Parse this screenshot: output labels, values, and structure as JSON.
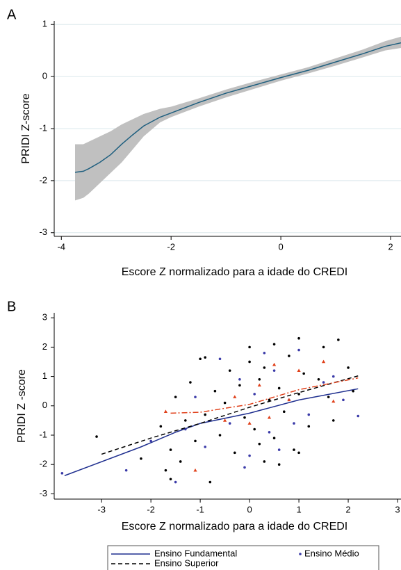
{
  "chart_data": [
    {
      "type": "line",
      "panel_label": "A",
      "xlabel": "Escore Z normalizado para a idade do CREDI",
      "ylabel": "PRIDI Z-score",
      "xlim": [
        -4.13,
        2.19
      ],
      "ylim": [
        -3.07,
        1.07
      ],
      "xticks": [
        -4,
        -2,
        0,
        2
      ],
      "yticks": [
        -3,
        -2,
        -1,
        0,
        1
      ],
      "grid": true,
      "series": [
        {
          "color": "#1f5f7f",
          "band_color": "#c0c0c0",
          "x": [
            -3.75,
            -3.6,
            -3.5,
            -3.3,
            -3.1,
            -2.9,
            -2.7,
            -2.5,
            -2.2,
            -2,
            -1.5,
            -1,
            -0.5,
            0,
            0.5,
            1,
            1.5,
            1.9,
            2.2
          ],
          "values": [
            -1.84,
            -1.82,
            -1.77,
            -1.65,
            -1.5,
            -1.3,
            -1.12,
            -0.95,
            -0.78,
            -0.7,
            -0.5,
            -0.32,
            -0.17,
            -0.02,
            0.12,
            0.28,
            0.44,
            0.58,
            0.65
          ],
          "lower": [
            -2.38,
            -2.33,
            -2.25,
            -2.05,
            -1.85,
            -1.65,
            -1.4,
            -1.15,
            -0.88,
            -0.78,
            -0.58,
            -0.4,
            -0.24,
            -0.08,
            0.06,
            0.21,
            0.37,
            0.5,
            0.55
          ],
          "upper": [
            -1.3,
            -1.3,
            -1.25,
            -1.15,
            -1.05,
            -0.92,
            -0.82,
            -0.72,
            -0.62,
            -0.58,
            -0.42,
            -0.25,
            -0.1,
            0.04,
            0.18,
            0.35,
            0.52,
            0.68,
            0.77
          ]
        }
      ]
    },
    {
      "type": "scatter",
      "panel_label": "B",
      "xlabel": "Escore Z normalizado para a idade do CREDI",
      "ylabel": "PRIDI Z -score",
      "xlim": [
        -3.96,
        3.07
      ],
      "ylim": [
        -3.18,
        3.17
      ],
      "xticks": [
        -3,
        -2,
        -1,
        0,
        1,
        2,
        3
      ],
      "yticks": [
        -3,
        -2,
        -1,
        0,
        1,
        2,
        3
      ],
      "grid": false,
      "series": [
        {
          "name": "Ensino Fundamental",
          "mark": "line",
          "dash": "none",
          "color": "#1f2f8f",
          "x": [
            -3.75,
            -2.2,
            -1.5,
            -1,
            0,
            1,
            2.2
          ],
          "values": [
            -2.38,
            -1.4,
            -0.9,
            -0.6,
            -0.25,
            0.2,
            0.58
          ]
        },
        {
          "name": "Ensino Médio",
          "mark": "dot",
          "color": "#3a3aa8",
          "x": [
            -3.8,
            -2.5,
            -2,
            -1.5,
            -1.3,
            -1.1,
            -0.9,
            -0.6,
            -0.4,
            -0.2,
            0,
            0.1,
            0.3,
            0.4,
            0.5,
            0.6,
            0.8,
            1,
            1.2,
            1.5,
            1.7,
            2.2,
            -0.1,
            0.9,
            1.9
          ],
          "values": [
            -2.3,
            -2.2,
            -1.2,
            -2.6,
            -0.8,
            0.3,
            -1.4,
            1.6,
            -0.6,
            0.9,
            -1.7,
            0.4,
            1.8,
            -0.9,
            1.2,
            -1.5,
            0.2,
            1.9,
            -0.3,
            0.8,
            1.0,
            -0.35,
            -2.1,
            -0.6,
            0.2
          ]
        },
        {
          "name": "Ensino Superior",
          "mark": "line",
          "dash": "6 4",
          "color": "#000000",
          "x": [
            -3,
            -2,
            -1,
            0,
            1,
            2.2
          ],
          "values": [
            -1.65,
            -1.1,
            -0.6,
            -0.05,
            0.45,
            1.02
          ]
        },
        {
          "mark": "dot",
          "color": "#000000",
          "x": [
            -3.1,
            -2.2,
            -1.8,
            -1.7,
            -1.6,
            -1.5,
            -1.4,
            -1.3,
            -1.2,
            -1.1,
            -1,
            -0.9,
            -0.8,
            -0.7,
            -0.6,
            -0.5,
            -0.4,
            -0.3,
            -0.2,
            -0.1,
            0,
            0,
            0.1,
            0.2,
            0.3,
            0.3,
            0.4,
            0.5,
            0.5,
            0.6,
            0.7,
            0.8,
            0.9,
            1,
            1,
            1.1,
            1.2,
            1.4,
            1.5,
            1.6,
            1.7,
            1.8,
            2,
            2.1,
            -1.6,
            -0.9,
            0.2,
            0.6,
            1.0
          ],
          "values": [
            -1.05,
            -1.8,
            -0.7,
            -2.2,
            -1.5,
            0.3,
            -1.9,
            -0.5,
            0.8,
            -1.2,
            1.6,
            -0.3,
            -2.6,
            0.5,
            -1.0,
            0.1,
            1.2,
            -1.6,
            0.7,
            -0.4,
            1.5,
            2.0,
            -0.8,
            0.9,
            -1.9,
            1.3,
            0.2,
            2.1,
            -1.1,
            0.6,
            -0.2,
            1.7,
            -1.5,
            2.3,
            0.4,
            1.1,
            -0.7,
            0.9,
            2.0,
            0.3,
            -0.5,
            2.25,
            1.3,
            0.5,
            -2.5,
            1.65,
            -1.3,
            -2.0,
            -1.6
          ]
        },
        {
          "mark": "triangle",
          "color": "#e0401a",
          "x": [
            -1.7,
            -1.1,
            -0.5,
            -0.3,
            0,
            0.2,
            0.4,
            0.5,
            0.8,
            1,
            1.5,
            1.7
          ],
          "values": [
            -0.2,
            -2.2,
            -0.5,
            0.3,
            -0.6,
            0.7,
            -0.4,
            1.4,
            0.2,
            1.2,
            1.5,
            0.15
          ]
        },
        {
          "mark": "line",
          "dash": "8 3 2 3",
          "color": "#e0401a",
          "x": [
            -1.6,
            -1,
            0,
            1,
            2.2
          ],
          "values": [
            -0.25,
            -0.22,
            0.05,
            0.55,
            0.95
          ]
        }
      ]
    }
  ]
}
